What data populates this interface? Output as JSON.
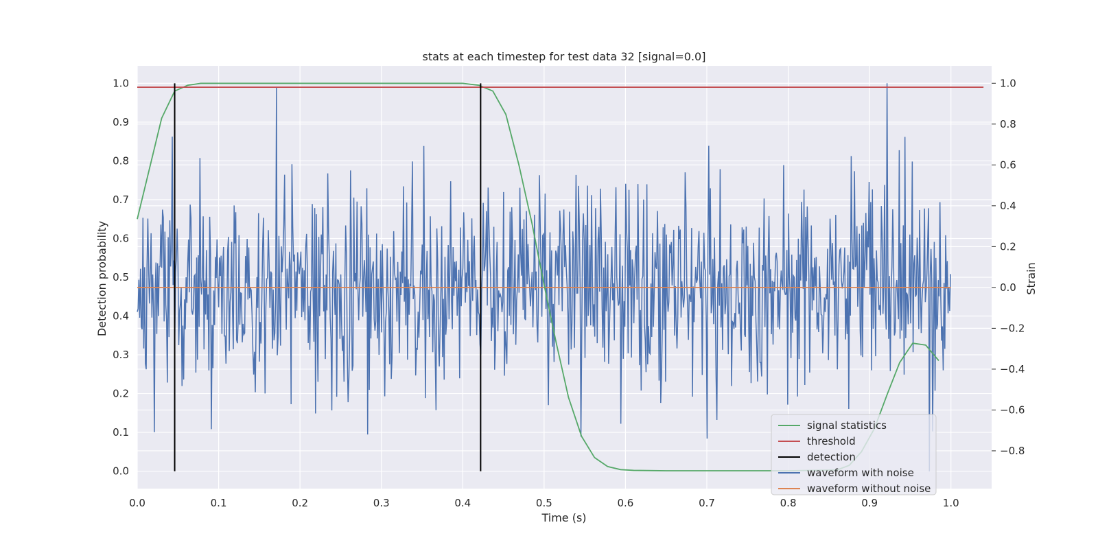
{
  "chart_data": {
    "type": "line",
    "title": "stats at each timestep for test data 32 [signal=0.0]",
    "xlabel": "Time (s)",
    "ylabel_left": "Detection probability",
    "ylabel_right": "Strain",
    "xlim": [
      0.0,
      1.05
    ],
    "ylim_left": [
      -0.045,
      1.045
    ],
    "ylim_right": [
      -0.985,
      1.085
    ],
    "x_ticks": [
      "0.0",
      "0.1",
      "0.2",
      "0.3",
      "0.4",
      "0.5",
      "0.6",
      "0.7",
      "0.8",
      "0.9",
      "1.0"
    ],
    "y_left_ticks": [
      "0.0",
      "0.1",
      "0.2",
      "0.3",
      "0.4",
      "0.5",
      "0.6",
      "0.7",
      "0.8",
      "0.9",
      "1.0"
    ],
    "y_right_ticks": [
      "−0.8",
      "−0.6",
      "−0.4",
      "−0.2",
      "0.0",
      "0.2",
      "0.4",
      "0.6",
      "0.8",
      "1.0"
    ],
    "grid": true,
    "legend_position": "lower-right",
    "colors": {
      "signal_statistics": "#55a868",
      "threshold": "#c44e52",
      "detection": "#000000",
      "waveform_with_noise": "#4c72b0",
      "waveform_without_noise": "#dd8452",
      "plot_background": "#eaeaf2",
      "grid": "#ffffff"
    },
    "series": [
      {
        "name": "signal statistics",
        "axis": "left",
        "x": [
          0.0,
          0.015,
          0.03,
          0.046,
          0.062,
          0.078,
          0.1,
          0.2,
          0.3,
          0.4,
          0.42,
          0.437,
          0.453,
          0.469,
          0.485,
          0.5,
          0.515,
          0.53,
          0.546,
          0.562,
          0.578,
          0.594,
          0.61,
          0.65,
          0.7,
          0.8,
          0.86,
          0.875,
          0.89,
          0.906,
          0.922,
          0.937,
          0.953,
          0.969,
          0.985
        ],
        "y": [
          0.65,
          0.78,
          0.91,
          0.98,
          0.995,
          1.0,
          1.0,
          1.0,
          1.0,
          1.0,
          0.995,
          0.98,
          0.92,
          0.79,
          0.64,
          0.48,
          0.33,
          0.19,
          0.09,
          0.035,
          0.012,
          0.004,
          0.002,
          0.001,
          0.001,
          0.001,
          0.003,
          0.015,
          0.05,
          0.11,
          0.2,
          0.28,
          0.33,
          0.325,
          0.285
        ]
      },
      {
        "name": "threshold",
        "axis": "left",
        "x": [
          0.0,
          1.04
        ],
        "y": [
          0.99,
          0.99
        ]
      },
      {
        "name": "detection",
        "axis": "left",
        "x_positions": [
          0.046,
          0.422
        ],
        "y_range": [
          0.0,
          1.0
        ]
      },
      {
        "name": "waveform with noise",
        "axis": "right",
        "x_range": [
          0.0,
          0.9995
        ],
        "n_points": 1000,
        "std": 0.24,
        "y_range": [
          -0.9,
          1.0
        ],
        "peaks": [
          {
            "x": 0.171,
            "y": 0.98
          },
          {
            "x": 0.921,
            "y": 1.0
          },
          {
            "x": 0.973,
            "y": -0.9
          },
          {
            "x": 0.545,
            "y": -0.73
          },
          {
            "x": 0.7,
            "y": -0.74
          }
        ]
      },
      {
        "name": "waveform without noise",
        "axis": "right",
        "x": [
          0.0,
          1.0
        ],
        "y": [
          0.0,
          0.0
        ]
      }
    ],
    "legend": [
      {
        "label": "signal statistics",
        "color": "#55a868"
      },
      {
        "label": "threshold",
        "color": "#c44e52"
      },
      {
        "label": "detection",
        "color": "#000000"
      },
      {
        "label": "waveform with noise",
        "color": "#4c72b0"
      },
      {
        "label": "waveform without noise",
        "color": "#dd8452"
      }
    ]
  }
}
